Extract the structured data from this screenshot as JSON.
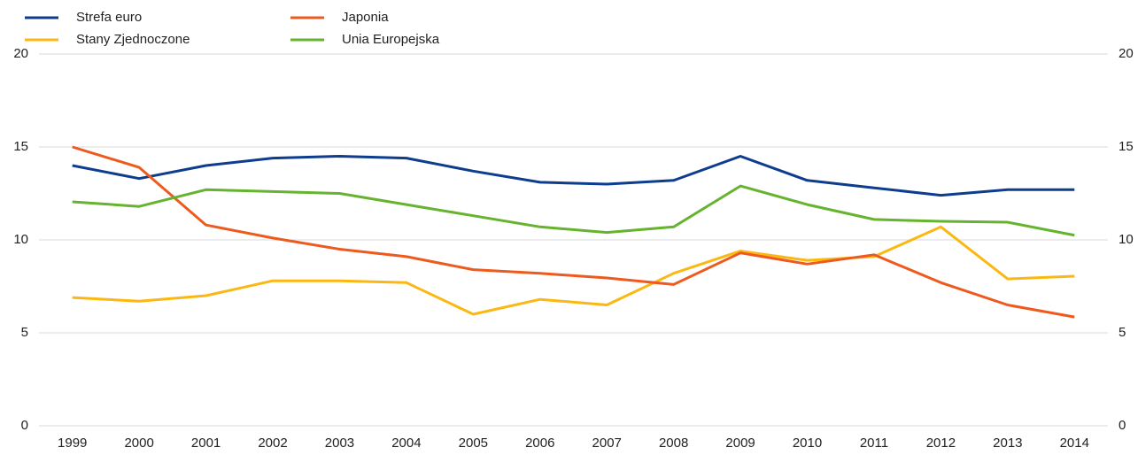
{
  "chart_data": {
    "type": "line",
    "categories": [
      "1999",
      "2000",
      "2001",
      "2002",
      "2003",
      "2004",
      "2005",
      "2006",
      "2007",
      "2008",
      "2009",
      "2010",
      "2011",
      "2012",
      "2013",
      "2014"
    ],
    "series": [
      {
        "name": "Strefa euro",
        "color": "#0d3d8c",
        "values": [
          14.0,
          13.3,
          14.0,
          14.4,
          14.5,
          14.4,
          13.7,
          13.1,
          13.0,
          13.2,
          14.5,
          13.2,
          12.8,
          12.4,
          12.7,
          12.7
        ]
      },
      {
        "name": "Stany Zjednoczone",
        "color": "#fbb813",
        "values": [
          6.9,
          6.7,
          7.0,
          7.8,
          7.8,
          7.7,
          6.0,
          6.8,
          6.5,
          8.2,
          9.4,
          8.9,
          9.1,
          10.7,
          7.9,
          8.05
        ]
      },
      {
        "name": "Japonia",
        "color": "#ee5a1e",
        "values": [
          15.0,
          13.9,
          10.8,
          10.1,
          9.5,
          9.1,
          8.4,
          8.2,
          7.95,
          7.6,
          9.3,
          8.7,
          9.2,
          7.7,
          6.5,
          5.85
        ]
      },
      {
        "name": "Unia Europejska",
        "color": "#65b32e",
        "values": [
          12.05,
          11.8,
          12.7,
          12.6,
          12.5,
          11.9,
          11.3,
          10.7,
          10.4,
          10.7,
          12.9,
          11.9,
          11.1,
          11.0,
          10.95,
          10.25
        ]
      }
    ],
    "ylim": [
      0,
      20
    ],
    "yticks": [
      0,
      5,
      10,
      15,
      20
    ],
    "grid": true
  }
}
